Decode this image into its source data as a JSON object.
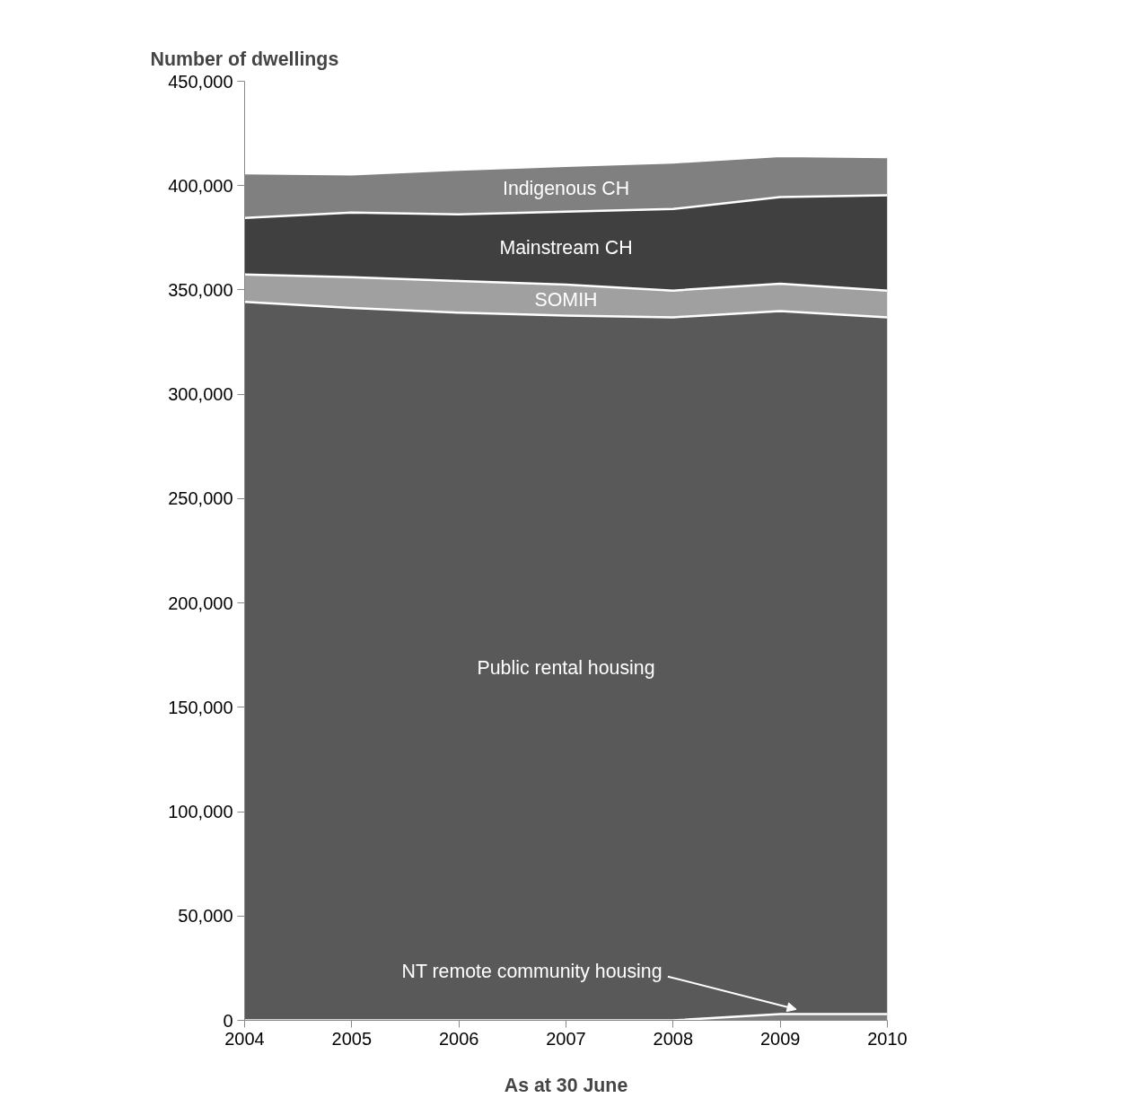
{
  "chart_data": {
    "type": "area",
    "stacked": true,
    "title": "Number of dwellings",
    "xlabel": "As at 30 June",
    "x": [
      2004,
      2005,
      2006,
      2007,
      2008,
      2009,
      2010
    ],
    "xlim": [
      2004,
      2010
    ],
    "xticks": [
      2004,
      2005,
      2006,
      2007,
      2008,
      2009,
      2010
    ],
    "ylim": [
      0,
      450000
    ],
    "yticks": [
      {
        "value": 0,
        "label": "0"
      },
      {
        "value": 50000,
        "label": "50,000"
      },
      {
        "value": 100000,
        "label": "100,000"
      },
      {
        "value": 150000,
        "label": "150,000"
      },
      {
        "value": 200000,
        "label": "200,000"
      },
      {
        "value": 250000,
        "label": "250,000"
      },
      {
        "value": 300000,
        "label": "300,000"
      },
      {
        "value": 350000,
        "label": "350,000"
      },
      {
        "value": 400000,
        "label": "400,000"
      },
      {
        "value": 450000,
        "label": "450,000"
      }
    ],
    "grid": false,
    "series": [
      {
        "name": "NT remote community housing",
        "color": "#7f7f7f",
        "values": [
          0,
          0,
          0,
          0,
          0,
          3000,
          3000
        ]
      },
      {
        "name": "Public rental housing",
        "color": "#595959",
        "values": [
          344300,
          341400,
          339100,
          337700,
          336900,
          336900,
          333900
        ]
      },
      {
        "name": "SOMIH",
        "color": "#a0a0a0",
        "values": [
          13100,
          14700,
          15200,
          14900,
          12800,
          13100,
          12800
        ]
      },
      {
        "name": "Mainstream CH",
        "color": "#404040",
        "values": [
          27100,
          31000,
          31900,
          34900,
          39100,
          41500,
          45700
        ]
      },
      {
        "name": "Indigenous CH",
        "color": "#808080",
        "values": [
          21400,
          18300,
          21400,
          21900,
          22300,
          19700,
          18300
        ]
      }
    ]
  }
}
